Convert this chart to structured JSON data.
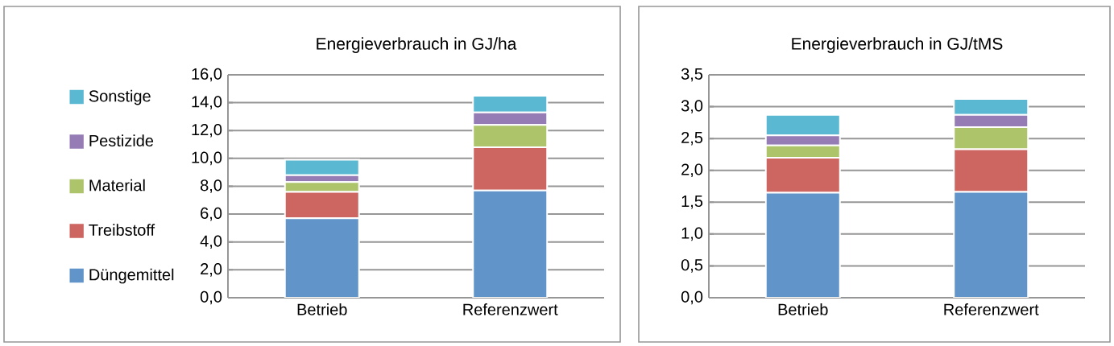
{
  "chart_data": [
    {
      "type": "bar",
      "title": "Energieverbrauch in GJ/ha",
      "stacked": true,
      "categories": [
        "Betrieb",
        "Referenzwert"
      ],
      "series": [
        {
          "name": "Düngemittel",
          "color": "#6194c8",
          "values": [
            5.7,
            7.7
          ]
        },
        {
          "name": "Treibstoff",
          "color": "#cd6660",
          "values": [
            1.9,
            3.1
          ]
        },
        {
          "name": "Material",
          "color": "#adc46b",
          "values": [
            0.7,
            1.6
          ]
        },
        {
          "name": "Pestizide",
          "color": "#957cb5",
          "values": [
            0.5,
            0.9
          ]
        },
        {
          "name": "Sonstige",
          "color": "#5ab8d2",
          "values": [
            1.1,
            1.2
          ]
        }
      ],
      "ylim": [
        0,
        16
      ],
      "yticks": [
        {
          "value": 0,
          "label": "0,0"
        },
        {
          "value": 2,
          "label": "2,0"
        },
        {
          "value": 4,
          "label": "4,0"
        },
        {
          "value": 6,
          "label": "6,0"
        },
        {
          "value": 8,
          "label": "8,0"
        },
        {
          "value": 10,
          "label": "10,0"
        },
        {
          "value": 12,
          "label": "12,0"
        },
        {
          "value": 14,
          "label": "14,0"
        },
        {
          "value": 16,
          "label": "16,0"
        }
      ],
      "grid": "y",
      "legend": "left"
    },
    {
      "type": "bar",
      "title": "Energieverbrauch in GJ/tMS",
      "stacked": true,
      "categories": [
        "Betrieb",
        "Referenzwert"
      ],
      "series": [
        {
          "color": "#6194c8",
          "values": [
            1.65,
            1.66
          ]
        },
        {
          "color": "#cd6660",
          "values": [
            0.55,
            0.67
          ]
        },
        {
          "color": "#adc46b",
          "values": [
            0.19,
            0.35
          ]
        },
        {
          "color": "#957cb5",
          "values": [
            0.16,
            0.19
          ]
        },
        {
          "color": "#5ab8d2",
          "values": [
            0.32,
            0.25
          ]
        }
      ],
      "ylim": [
        0,
        3.5
      ],
      "yticks": [
        {
          "value": 0,
          "label": "0,0"
        },
        {
          "value": 0.5,
          "label": "0,5"
        },
        {
          "value": 1,
          "label": "1,0"
        },
        {
          "value": 1.5,
          "label": "1,5"
        },
        {
          "value": 2,
          "label": "2,0"
        },
        {
          "value": 2.5,
          "label": "2,5"
        },
        {
          "value": 3,
          "label": "3,0"
        },
        {
          "value": 3.5,
          "label": "3,5"
        }
      ],
      "grid": "y"
    }
  ]
}
